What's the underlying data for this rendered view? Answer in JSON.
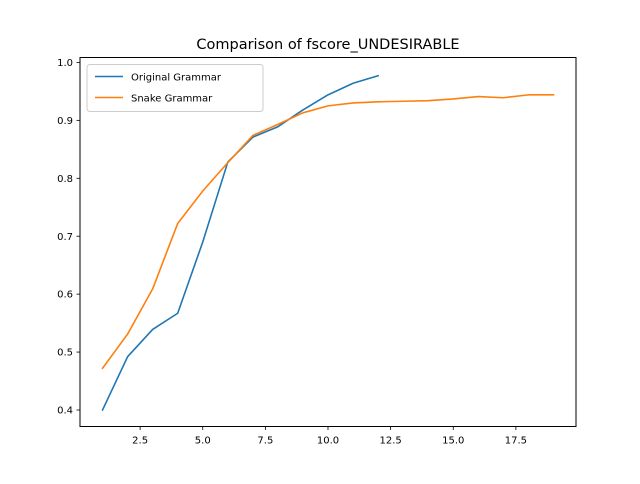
{
  "chart_data": {
    "type": "line",
    "title": "Comparison of fscore_UNDESIRABLE",
    "xlabel": "",
    "ylabel": "",
    "xlim": [
      0.1,
      19.9
    ],
    "ylim": [
      0.3715,
      1.0085
    ],
    "x_ticks": [
      2.5,
      5.0,
      7.5,
      10.0,
      12.5,
      15.0,
      17.5
    ],
    "x_tick_labels": [
      "2.5",
      "5.0",
      "7.5",
      "10.0",
      "12.5",
      "15.0",
      "17.5"
    ],
    "y_ticks": [
      0.4,
      0.5,
      0.6,
      0.7,
      0.8,
      0.9,
      1.0
    ],
    "y_tick_labels": [
      "0.4",
      "0.5",
      "0.6",
      "0.7",
      "0.8",
      "0.9",
      "1.0"
    ],
    "grid": false,
    "legend_position": "upper-left",
    "series": [
      {
        "name": "Original Grammar",
        "color": "#1f77b4",
        "x": [
          1,
          2,
          3,
          4,
          5,
          6,
          7,
          8,
          9,
          10,
          11,
          12
        ],
        "y": [
          0.4,
          0.492,
          0.539,
          0.567,
          0.69,
          0.828,
          0.871,
          0.889,
          0.918,
          0.944,
          0.964,
          0.977
        ]
      },
      {
        "name": "Snake Grammar",
        "color": "#ff7f0e",
        "x": [
          1,
          2,
          3,
          4,
          5,
          6,
          7,
          8,
          9,
          10,
          11,
          12,
          13,
          14,
          15,
          16,
          17,
          18,
          19
        ],
        "y": [
          0.472,
          0.531,
          0.609,
          0.722,
          0.778,
          0.827,
          0.874,
          0.893,
          0.913,
          0.925,
          0.93,
          0.932,
          0.933,
          0.934,
          0.937,
          0.941,
          0.939,
          0.944,
          0.944
        ]
      }
    ]
  }
}
